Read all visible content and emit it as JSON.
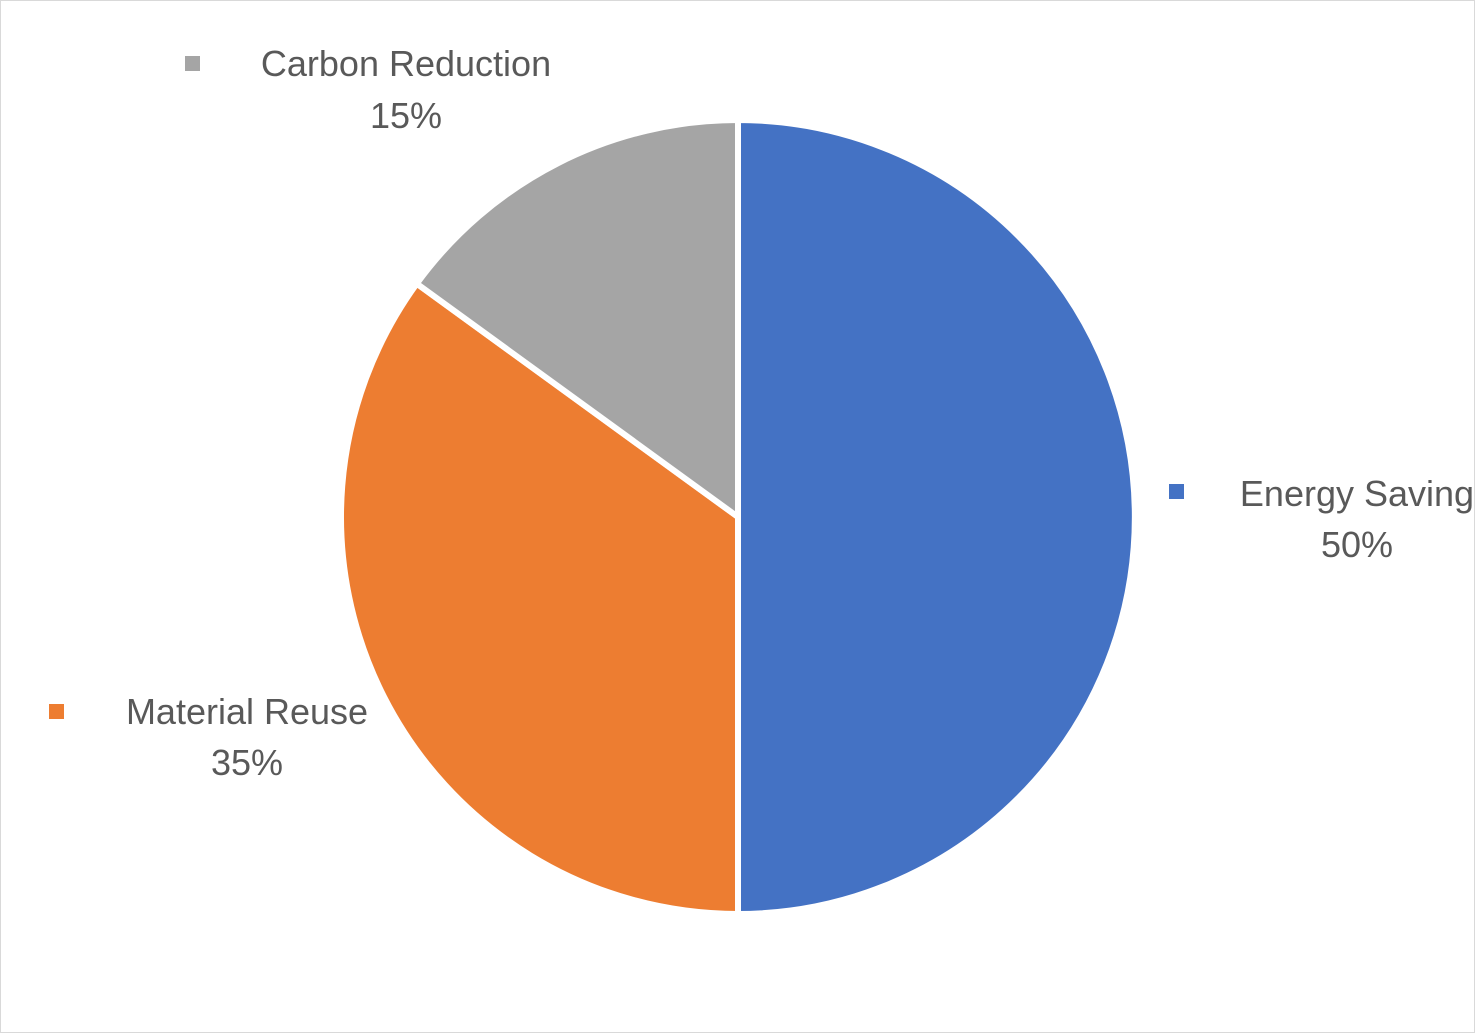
{
  "chart_data": {
    "type": "pie",
    "start_angle_deg": 0,
    "direction": "clockwise",
    "slices": [
      {
        "name": "Energy Saving",
        "value": 50,
        "percent_label": "50%",
        "color": "#4472C4"
      },
      {
        "name": "Material Reuse",
        "value": 35,
        "percent_label": "35%",
        "color": "#ED7D31"
      },
      {
        "name": "Carbon Reduction",
        "value": 15,
        "percent_label": "15%",
        "color": "#A5A5A5"
      }
    ],
    "data_labels": "category name and percentage, outside end with legend key",
    "slice_border_color": "#FFFFFF"
  }
}
